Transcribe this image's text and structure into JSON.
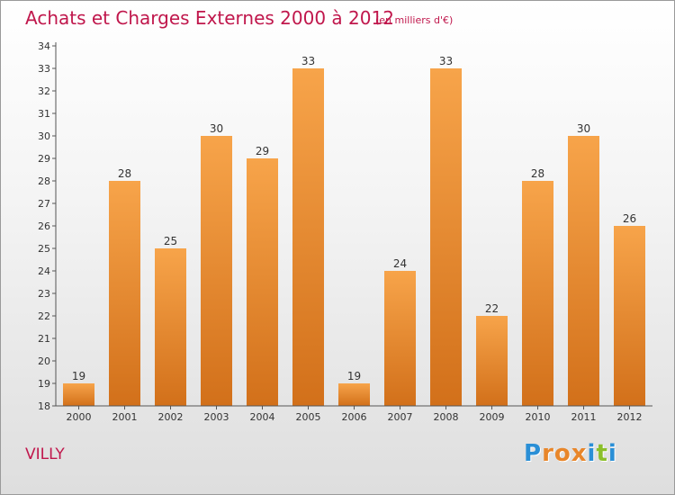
{
  "chart_data": {
    "type": "bar",
    "title": "Achats et Charges Externes 2000 à 2012",
    "subtitle": "(en milliers d'€)",
    "categories": [
      "2000",
      "2001",
      "2002",
      "2003",
      "2004",
      "2005",
      "2006",
      "2007",
      "2008",
      "2009",
      "2010",
      "2011",
      "2012"
    ],
    "values": [
      19,
      28,
      25,
      30,
      29,
      33,
      19,
      24,
      33,
      22,
      28,
      30,
      26
    ],
    "ylim": [
      18,
      34
    ],
    "yticks": [
      "18",
      "19",
      "20",
      "21",
      "22",
      "23",
      "24",
      "25",
      "26",
      "27",
      "28",
      "29",
      "30",
      "31",
      "32",
      "33",
      "34"
    ],
    "grid": false,
    "bar_color": "#f0922a"
  },
  "commune": "VILLY",
  "logo": {
    "letters": [
      "P",
      "r",
      "o",
      "x",
      "i",
      "t",
      "i"
    ],
    "colors": [
      "#2a8fd6",
      "#e8862a",
      "#e8862a",
      "#e8862a",
      "#2a8fd6",
      "#8bbf2a",
      "#2a8fd6"
    ]
  }
}
